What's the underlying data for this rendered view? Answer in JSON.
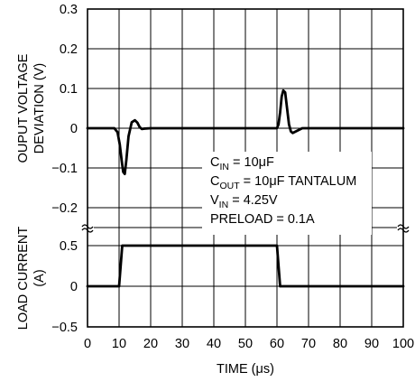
{
  "chart_data": {
    "type": "line",
    "xlabel_prefix": "TIME (",
    "xlabel_mu": "μ",
    "xlabel_suffix": "s)",
    "x_ticks": [
      "0",
      "10",
      "20",
      "30",
      "40",
      "50",
      "60",
      "70",
      "80",
      "90",
      "100"
    ],
    "xlim": [
      0,
      100
    ],
    "grid": true,
    "top_panel": {
      "ylabel_line1": "OUPUT VOLTAGE",
      "ylabel_line2": "DEVIATION (V)",
      "ylim": [
        -0.25,
        0.3
      ],
      "y_ticks": [
        "0.3",
        "0.2",
        "0.1",
        "0",
        "−0.1",
        "−0.2"
      ],
      "y_tick_values": [
        0.3,
        0.2,
        0.1,
        0,
        -0.1,
        -0.2
      ],
      "series": [
        {
          "x": [
            0,
            8.5,
            9.5,
            10.2,
            10.8,
            11.3,
            11.8,
            12.3,
            13,
            14,
            15,
            15.8,
            16.5,
            17.2,
            18,
            20,
            60,
            60.5,
            61,
            61.5,
            62,
            62.6,
            63.2,
            63.8,
            64.4,
            65,
            66,
            67,
            68,
            70,
            100
          ],
          "y": [
            0,
            0,
            -0.01,
            -0.04,
            -0.08,
            -0.11,
            -0.115,
            -0.08,
            -0.02,
            0.015,
            0.02,
            0.014,
            0.003,
            -0.002,
            -0.001,
            0,
            0,
            0.01,
            0.04,
            0.08,
            0.095,
            0.09,
            0.05,
            0.01,
            -0.008,
            -0.012,
            -0.008,
            -0.004,
            0,
            0,
            0
          ]
        }
      ]
    },
    "bottom_panel": {
      "ylabel_line1": "LOAD CURRENT",
      "ylabel_line2": "(A)",
      "ylim": [
        -0.5,
        0.5
      ],
      "y_ticks": [
        "0.5",
        "0",
        "−0.5"
      ],
      "y_tick_values": [
        0.5,
        0,
        -0.5
      ],
      "series": [
        {
          "x": [
            0,
            10,
            11,
            60,
            61,
            100
          ],
          "y": [
            0,
            0,
            0.5,
            0.5,
            0,
            0
          ]
        }
      ]
    },
    "annotation": {
      "cin_main": "C",
      "cin_sub": "IN",
      "cin_value": " = 10",
      "cin_mu": "μ",
      "cin_unit": "F",
      "cout_main": "C",
      "cout_sub": "OUT",
      "cout_value": " = 10",
      "cout_mu": "μ",
      "cout_unit": "F TANTALUM",
      "vin_main": "V",
      "vin_sub": "IN",
      "vin_value": " = 4.25V",
      "preload": "PRELOAD = 0.1A"
    }
  }
}
